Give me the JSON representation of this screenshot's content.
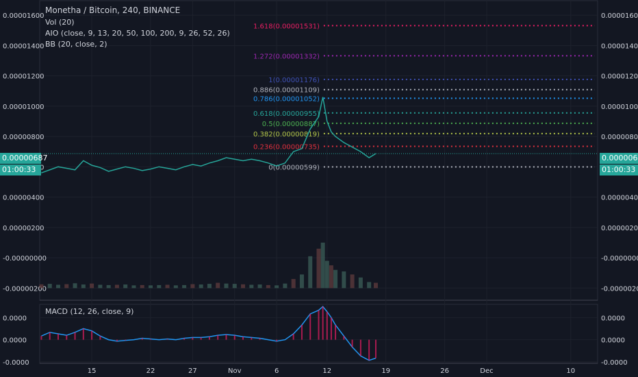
{
  "header": {
    "title": "Monetha / Bitcoin, 240, BINANCE",
    "indicators": [
      "Vol (20)",
      "AIO (close, 9, 13, 20, 50, 100, 200, 9, 26, 52, 26)",
      "BB (20, close, 2)"
    ],
    "macd_title": "MACD (12, 26, close, 9)"
  },
  "last_price": {
    "value": "0.00000687",
    "countdown": "01:00:33"
  },
  "chart_data": {
    "type": "candlestick",
    "title": "Monetha / Bitcoin, 240, BINANCE",
    "y_ticks": [
      "0.00001600",
      "0.00001400",
      "0.00001200",
      "0.00001000",
      "0.00000800",
      "0.00000600",
      "0.00000400",
      "0.00000200",
      "-0.00000000",
      "-0.00000200"
    ],
    "y_tick_values": [
      1600,
      1400,
      1200,
      1000,
      800,
      600,
      400,
      200,
      0,
      -200
    ],
    "ylim": [
      -280,
      1700
    ],
    "x_ticks": [
      "15",
      "22",
      "27",
      "Nov",
      "6",
      "12",
      "19",
      "26",
      "Dec",
      "10"
    ],
    "x_tick_days": [
      15,
      22,
      27,
      32,
      37,
      43,
      50,
      57,
      62,
      72
    ],
    "xlim": [
      8.8,
      75.2
    ],
    "macd_ticks": [
      "0.0000",
      "0.0000",
      "-0.0000"
    ],
    "macd_tick_values": [
      30,
      0,
      -30
    ],
    "macd_ylim": [
      -32,
      48
    ],
    "fibonacci": [
      {
        "label": "1.618(0.00001531)",
        "value": 1531,
        "color": "#e91e63"
      },
      {
        "label": "1.272(0.00001332)",
        "value": 1332,
        "color": "#9c27b0"
      },
      {
        "label": "1(0.00001176)",
        "value": 1176,
        "color": "#3f51b5"
      },
      {
        "label": "0.886(0.00001109)",
        "value": 1109,
        "color": "#b0b3bd"
      },
      {
        "label": "0.786(0.00001052)",
        "value": 1052,
        "color": "#2196f3"
      },
      {
        "label": "0.618(0.00000955)",
        "value": 955,
        "color": "#26a69a"
      },
      {
        "label": "0.5(0.00000887)",
        "value": 887,
        "color": "#4caf50"
      },
      {
        "label": "0.382(0.00000819)",
        "value": 819,
        "color": "#b5c84a"
      },
      {
        "label": "0.236(0.00000735)",
        "value": 735,
        "color": "#e0303e"
      },
      {
        "label": "0(0.00000599)",
        "value": 599,
        "color": "#b0b3bd"
      }
    ],
    "current_price": 687,
    "price_path": [
      [
        9.0,
        560
      ],
      [
        10.0,
        580
      ],
      [
        11.0,
        600
      ],
      [
        12.0,
        590
      ],
      [
        13.0,
        580
      ],
      [
        14.0,
        640
      ],
      [
        15.0,
        610
      ],
      [
        16.0,
        595
      ],
      [
        17.0,
        570
      ],
      [
        18.0,
        585
      ],
      [
        19.0,
        600
      ],
      [
        20.0,
        590
      ],
      [
        21.0,
        575
      ],
      [
        22.0,
        585
      ],
      [
        23.0,
        600
      ],
      [
        24.0,
        590
      ],
      [
        25.0,
        580
      ],
      [
        26.0,
        600
      ],
      [
        27.0,
        615
      ],
      [
        28.0,
        605
      ],
      [
        29.0,
        625
      ],
      [
        30.0,
        640
      ],
      [
        31.0,
        660
      ],
      [
        32.0,
        650
      ],
      [
        33.0,
        640
      ],
      [
        34.0,
        650
      ],
      [
        35.0,
        640
      ],
      [
        36.0,
        625
      ],
      [
        37.0,
        605
      ],
      [
        38.0,
        625
      ],
      [
        39.0,
        700
      ],
      [
        40.0,
        720
      ],
      [
        41.0,
        850
      ],
      [
        42.0,
        930
      ],
      [
        42.5,
        1060
      ],
      [
        43.0,
        900
      ],
      [
        43.5,
        830
      ],
      [
        44.0,
        800
      ],
      [
        45.0,
        760
      ],
      [
        46.0,
        730
      ],
      [
        47.0,
        700
      ],
      [
        48.0,
        660
      ],
      [
        48.8,
        687
      ]
    ],
    "volume_path": [
      [
        9.0,
        25
      ],
      [
        10.0,
        28
      ],
      [
        11.0,
        22
      ],
      [
        12.0,
        26
      ],
      [
        13.0,
        32
      ],
      [
        14.0,
        24
      ],
      [
        15.0,
        30
      ],
      [
        16.0,
        22
      ],
      [
        17.0,
        20
      ],
      [
        18.0,
        22
      ],
      [
        19.0,
        24
      ],
      [
        20.0,
        18
      ],
      [
        21.0,
        20
      ],
      [
        22.0,
        18
      ],
      [
        23.0,
        20
      ],
      [
        24.0,
        22
      ],
      [
        25.0,
        18
      ],
      [
        26.0,
        20
      ],
      [
        27.0,
        26
      ],
      [
        28.0,
        24
      ],
      [
        29.0,
        28
      ],
      [
        30.0,
        35
      ],
      [
        31.0,
        30
      ],
      [
        32.0,
        28
      ],
      [
        33.0,
        25
      ],
      [
        34.0,
        22
      ],
      [
        35.0,
        24
      ],
      [
        36.0,
        20
      ],
      [
        37.0,
        18
      ],
      [
        38.0,
        30
      ],
      [
        39.0,
        60
      ],
      [
        40.0,
        90
      ],
      [
        41.0,
        210
      ],
      [
        42.0,
        260
      ],
      [
        42.5,
        300
      ],
      [
        43.0,
        180
      ],
      [
        43.5,
        150
      ],
      [
        44.0,
        120
      ],
      [
        45.0,
        110
      ],
      [
        46.0,
        90
      ],
      [
        47.0,
        70
      ],
      [
        48.0,
        40
      ],
      [
        48.8,
        35
      ]
    ],
    "macd_path": [
      [
        9.0,
        5
      ],
      [
        10.0,
        10
      ],
      [
        11.0,
        8
      ],
      [
        12.0,
        6
      ],
      [
        13.0,
        10
      ],
      [
        14.0,
        15
      ],
      [
        15.0,
        12
      ],
      [
        16.0,
        5
      ],
      [
        17.0,
        0
      ],
      [
        18.0,
        -2
      ],
      [
        19.0,
        -1
      ],
      [
        20.0,
        0
      ],
      [
        21.0,
        2
      ],
      [
        22.0,
        1
      ],
      [
        23.0,
        0
      ],
      [
        24.0,
        1
      ],
      [
        25.0,
        0
      ],
      [
        26.0,
        2
      ],
      [
        27.0,
        3
      ],
      [
        28.0,
        3
      ],
      [
        29.0,
        4
      ],
      [
        30.0,
        6
      ],
      [
        31.0,
        7
      ],
      [
        32.0,
        6
      ],
      [
        33.0,
        4
      ],
      [
        34.0,
        3
      ],
      [
        35.0,
        2
      ],
      [
        36.0,
        0
      ],
      [
        37.0,
        -2
      ],
      [
        38.0,
        0
      ],
      [
        39.0,
        8
      ],
      [
        40.0,
        20
      ],
      [
        41.0,
        35
      ],
      [
        42.0,
        40
      ],
      [
        42.5,
        45
      ],
      [
        43.0,
        38
      ],
      [
        43.5,
        30
      ],
      [
        44.0,
        20
      ],
      [
        45.0,
        5
      ],
      [
        46.0,
        -10
      ],
      [
        47.0,
        -22
      ],
      [
        48.0,
        -28
      ],
      [
        48.8,
        -25
      ]
    ]
  }
}
